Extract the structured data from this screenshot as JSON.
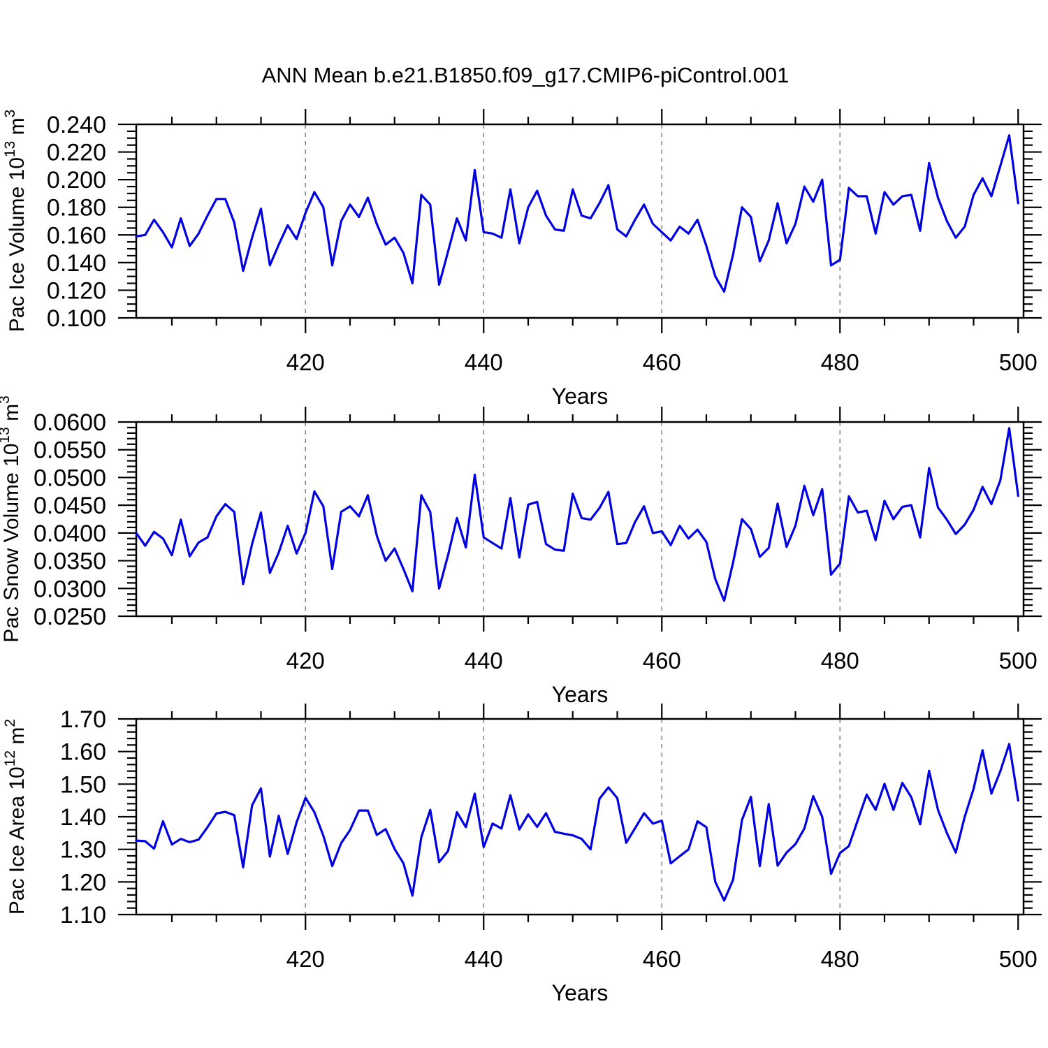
{
  "title": "ANN Mean b.e21.B1850.f09_g17.CMIP6-piControl.001",
  "colors": {
    "line": "#0000e0",
    "axis": "#000000",
    "grid": "#8a8a8a",
    "background": "#ffffff"
  },
  "chart_data": [
    {
      "type": "line",
      "name": "pac-ice-volume-chart",
      "ylabel_main": "Pac Ice Volume 10",
      "ylabel_sup1": "13",
      "ylabel_mid": " m",
      "ylabel_sup2": "3",
      "xlabel": "Years",
      "x_tick_labels": [
        "420",
        "440",
        "460",
        "480",
        "500"
      ],
      "y_tick_labels": [
        "0.100",
        "0.120",
        "0.140",
        "0.160",
        "0.180",
        "0.200",
        "0.220",
        "0.240"
      ],
      "ylim": [
        0.1,
        0.24
      ],
      "y_major_step": 0.02,
      "y_minor_step": 0.005,
      "xlim": [
        401,
        500
      ],
      "x_major_ticks": [
        420,
        440,
        460,
        480,
        500
      ],
      "x_minor_step": 5,
      "gridlines_x": [
        420,
        440,
        460,
        480
      ],
      "grid": "vertical-dashed",
      "legend": "none",
      "x_start": 401,
      "x_step": 1,
      "values": [
        0.159,
        0.16,
        0.171,
        0.162,
        0.151,
        0.172,
        0.152,
        0.161,
        0.174,
        0.186,
        0.186,
        0.169,
        0.134,
        0.158,
        0.179,
        0.138,
        0.153,
        0.167,
        0.157,
        0.176,
        0.191,
        0.18,
        0.138,
        0.17,
        0.182,
        0.173,
        0.187,
        0.168,
        0.153,
        0.158,
        0.147,
        0.125,
        0.189,
        0.182,
        0.124,
        0.148,
        0.172,
        0.156,
        0.207,
        0.162,
        0.161,
        0.158,
        0.193,
        0.154,
        0.18,
        0.192,
        0.174,
        0.164,
        0.163,
        0.193,
        0.174,
        0.172,
        0.183,
        0.196,
        0.164,
        0.159,
        0.171,
        0.182,
        0.168,
        0.162,
        0.156,
        0.166,
        0.161,
        0.171,
        0.152,
        0.13,
        0.119,
        0.146,
        0.18,
        0.173,
        0.141,
        0.156,
        0.183,
        0.154,
        0.168,
        0.195,
        0.184,
        0.2,
        0.138,
        0.142,
        0.194,
        0.188,
        0.188,
        0.161,
        0.191,
        0.182,
        0.188,
        0.189,
        0.163,
        0.212,
        0.187,
        0.17,
        0.158,
        0.166,
        0.189,
        0.201,
        0.188,
        0.21,
        0.232,
        0.183
      ]
    },
    {
      "type": "line",
      "name": "pac-snow-volume-chart",
      "ylabel_main": "Pac Snow Volume 10",
      "ylabel_sup1": "13",
      "ylabel_mid": " m",
      "ylabel_sup2": "3",
      "xlabel": "Years",
      "x_tick_labels": [
        "420",
        "440",
        "460",
        "480",
        "500"
      ],
      "y_tick_labels": [
        "0.0250",
        "0.0300",
        "0.0350",
        "0.0400",
        "0.0450",
        "0.0500",
        "0.0550",
        "0.0600"
      ],
      "ylim": [
        0.025,
        0.06
      ],
      "y_major_step": 0.005,
      "y_minor_step": 0.001,
      "xlim": [
        401,
        500
      ],
      "x_major_ticks": [
        420,
        440,
        460,
        480,
        500
      ],
      "x_minor_step": 5,
      "gridlines_x": [
        420,
        440,
        460,
        480
      ],
      "grid": "vertical-dashed",
      "legend": "none",
      "x_start": 401,
      "x_step": 1,
      "values": [
        0.04,
        0.0377,
        0.0402,
        0.039,
        0.036,
        0.0424,
        0.0358,
        0.0383,
        0.0392,
        0.043,
        0.0452,
        0.0438,
        0.0308,
        0.038,
        0.0437,
        0.0328,
        0.0365,
        0.0413,
        0.0363,
        0.04,
        0.0475,
        0.0448,
        0.0335,
        0.0438,
        0.0448,
        0.043,
        0.0468,
        0.0395,
        0.035,
        0.0372,
        0.0335,
        0.0295,
        0.0468,
        0.0438,
        0.03,
        0.036,
        0.0427,
        0.0374,
        0.0505,
        0.0392,
        0.0382,
        0.0372,
        0.0463,
        0.0356,
        0.0451,
        0.0456,
        0.038,
        0.037,
        0.0368,
        0.0471,
        0.0427,
        0.0424,
        0.0445,
        0.0474,
        0.038,
        0.0382,
        0.042,
        0.0448,
        0.04,
        0.0403,
        0.0378,
        0.0413,
        0.039,
        0.0406,
        0.0384,
        0.0317,
        0.0278,
        0.0347,
        0.0425,
        0.0407,
        0.0357,
        0.0373,
        0.0453,
        0.0375,
        0.0413,
        0.0485,
        0.0432,
        0.0479,
        0.0325,
        0.0345,
        0.0466,
        0.0437,
        0.044,
        0.0387,
        0.0458,
        0.0425,
        0.0447,
        0.045,
        0.0392,
        0.0517,
        0.0446,
        0.0424,
        0.0398,
        0.0415,
        0.0442,
        0.0483,
        0.0452,
        0.0495,
        0.0589,
        0.0467
      ]
    },
    {
      "type": "line",
      "name": "pac-ice-area-chart",
      "ylabel_main": "Pac Ice Area 10",
      "ylabel_sup1": "12",
      "ylabel_mid": " m",
      "ylabel_sup2": "2",
      "xlabel": "Years",
      "x_tick_labels": [
        "420",
        "440",
        "460",
        "480",
        "500"
      ],
      "y_tick_labels": [
        "1.10",
        "1.20",
        "1.30",
        "1.40",
        "1.50",
        "1.60",
        "1.70"
      ],
      "ylim": [
        1.1,
        1.7
      ],
      "y_major_step": 0.1,
      "y_minor_step": 0.02,
      "xlim": [
        401,
        500
      ],
      "x_major_ticks": [
        420,
        440,
        460,
        480,
        500
      ],
      "x_minor_step": 5,
      "gridlines_x": [
        420,
        440,
        460,
        480
      ],
      "grid": "vertical-dashed",
      "legend": "none",
      "x_start": 401,
      "x_step": 1,
      "values": [
        1.327,
        1.325,
        1.302,
        1.386,
        1.315,
        1.332,
        1.322,
        1.33,
        1.368,
        1.41,
        1.415,
        1.405,
        1.245,
        1.435,
        1.487,
        1.278,
        1.403,
        1.286,
        1.383,
        1.458,
        1.414,
        1.342,
        1.249,
        1.319,
        1.359,
        1.419,
        1.419,
        1.344,
        1.362,
        1.301,
        1.257,
        1.158,
        1.337,
        1.421,
        1.261,
        1.295,
        1.414,
        1.368,
        1.471,
        1.307,
        1.379,
        1.364,
        1.466,
        1.361,
        1.407,
        1.369,
        1.411,
        1.354,
        1.348,
        1.343,
        1.332,
        1.3,
        1.455,
        1.49,
        1.457,
        1.32,
        1.365,
        1.411,
        1.379,
        1.388,
        1.257,
        1.279,
        1.3,
        1.386,
        1.368,
        1.2,
        1.143,
        1.207,
        1.39,
        1.461,
        1.249,
        1.439,
        1.25,
        1.29,
        1.316,
        1.364,
        1.463,
        1.4,
        1.225,
        1.289,
        1.31,
        1.39,
        1.468,
        1.421,
        1.501,
        1.421,
        1.504,
        1.46,
        1.377,
        1.541,
        1.421,
        1.35,
        1.29,
        1.4,
        1.486,
        1.604,
        1.471,
        1.54,
        1.623,
        1.45
      ]
    }
  ]
}
